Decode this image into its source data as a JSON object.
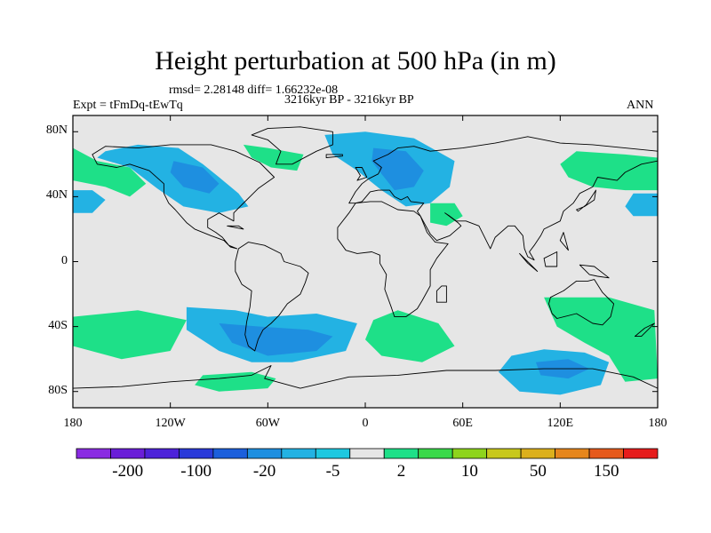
{
  "title": "Height perturbation at 500 hPa (in m)",
  "stats": "rmsd= 2.28148 diff= 1.66232e-08",
  "experiment": "Expt = tFmDq-tEwTq",
  "period": "3216kyr BP - 3216kyr BP",
  "season": "ANN",
  "map": {
    "lon_range": [
      -180,
      180
    ],
    "lat_range": [
      -90,
      90
    ],
    "lat_ticks": [
      {
        "value": 80,
        "label": "80N"
      },
      {
        "value": 40,
        "label": "40N"
      },
      {
        "value": 0,
        "label": "0"
      },
      {
        "value": -40,
        "label": "40S"
      },
      {
        "value": -80,
        "label": "80S"
      }
    ],
    "lon_ticks": [
      {
        "value": -180,
        "label": "180"
      },
      {
        "value": -120,
        "label": "120W"
      },
      {
        "value": -60,
        "label": "60W"
      },
      {
        "value": 0,
        "label": "0"
      },
      {
        "value": 60,
        "label": "60E"
      },
      {
        "value": 120,
        "label": "120E"
      },
      {
        "value": 180,
        "label": "180"
      }
    ]
  },
  "colorbar": {
    "colors": [
      "#8a2be2",
      "#6a1ed8",
      "#4d22d9",
      "#2a3ad9",
      "#1b5fdc",
      "#1e8fe0",
      "#23b2e3",
      "#1ec8e0",
      "#e6e6e6",
      "#1ee088",
      "#3ad94a",
      "#8ed41c",
      "#c8c81c",
      "#dcb01c",
      "#e6861c",
      "#e65a1c",
      "#e61c1c"
    ],
    "labels": [
      {
        "index": 1,
        "text": "-200"
      },
      {
        "index": 3,
        "text": "-100"
      },
      {
        "index": 5,
        "text": "-20"
      },
      {
        "index": 7,
        "text": "-5"
      },
      {
        "index": 9,
        "text": "2"
      },
      {
        "index": 11,
        "text": "10"
      },
      {
        "index": 13,
        "text": "50"
      },
      {
        "index": 15,
        "text": "150"
      }
    ]
  },
  "anomalies": [
    {
      "color": "#23b2e3",
      "points": [
        [
          -160,
          68
        ],
        [
          -140,
          72
        ],
        [
          -115,
          70
        ],
        [
          -100,
          60
        ],
        [
          -90,
          52
        ],
        [
          -78,
          42
        ],
        [
          -72,
          34
        ],
        [
          -90,
          30
        ],
        [
          -112,
          34
        ],
        [
          -128,
          45
        ],
        [
          -145,
          58
        ],
        [
          -165,
          64
        ]
      ]
    },
    {
      "color": "#1e8fe0",
      "points": [
        [
          -118,
          62
        ],
        [
          -100,
          58
        ],
        [
          -90,
          48
        ],
        [
          -96,
          42
        ],
        [
          -112,
          46
        ],
        [
          -120,
          55
        ]
      ]
    },
    {
      "color": "#23b2e3",
      "points": [
        [
          -25,
          78
        ],
        [
          0,
          80
        ],
        [
          30,
          76
        ],
        [
          55,
          62
        ],
        [
          52,
          46
        ],
        [
          40,
          36
        ],
        [
          25,
          34
        ],
        [
          10,
          44
        ],
        [
          -5,
          56
        ],
        [
          -20,
          66
        ]
      ]
    },
    {
      "color": "#1e8fe0",
      "points": [
        [
          5,
          70
        ],
        [
          25,
          68
        ],
        [
          36,
          56
        ],
        [
          30,
          46
        ],
        [
          18,
          44
        ],
        [
          10,
          54
        ],
        [
          4,
          62
        ]
      ]
    },
    {
      "color": "#23b2e3",
      "points": [
        [
          -180,
          44
        ],
        [
          -168,
          44
        ],
        [
          -160,
          38
        ],
        [
          -168,
          30
        ],
        [
          -180,
          30
        ]
      ]
    },
    {
      "color": "#23b2e3",
      "points": [
        [
          165,
          42
        ],
        [
          180,
          42
        ],
        [
          180,
          28
        ],
        [
          165,
          28
        ],
        [
          160,
          34
        ]
      ]
    },
    {
      "color": "#23b2e3",
      "points": [
        [
          -110,
          -28
        ],
        [
          -80,
          -30
        ],
        [
          -60,
          -34
        ],
        [
          -30,
          -32
        ],
        [
          -5,
          -38
        ],
        [
          -12,
          -55
        ],
        [
          -45,
          -62
        ],
        [
          -70,
          -62
        ],
        [
          -90,
          -55
        ],
        [
          -110,
          -42
        ]
      ]
    },
    {
      "color": "#1e8fe0",
      "points": [
        [
          -90,
          -38
        ],
        [
          -65,
          -40
        ],
        [
          -35,
          -42
        ],
        [
          -20,
          -46
        ],
        [
          -30,
          -55
        ],
        [
          -60,
          -58
        ],
        [
          -82,
          -50
        ]
      ]
    },
    {
      "color": "#23b2e3",
      "points": [
        [
          90,
          -58
        ],
        [
          110,
          -54
        ],
        [
          135,
          -56
        ],
        [
          150,
          -62
        ],
        [
          145,
          -76
        ],
        [
          120,
          -82
        ],
        [
          95,
          -80
        ],
        [
          82,
          -68
        ]
      ]
    },
    {
      "color": "#1e8fe0",
      "points": [
        [
          105,
          -62
        ],
        [
          125,
          -60
        ],
        [
          138,
          -66
        ],
        [
          125,
          -72
        ],
        [
          108,
          -70
        ]
      ]
    },
    {
      "color": "#1ee088",
      "points": [
        [
          -180,
          70
        ],
        [
          -165,
          62
        ],
        [
          -145,
          58
        ],
        [
          -135,
          48
        ],
        [
          -145,
          40
        ],
        [
          -160,
          46
        ],
        [
          -180,
          50
        ]
      ]
    },
    {
      "color": "#1ee088",
      "points": [
        [
          -75,
          72
        ],
        [
          -60,
          70
        ],
        [
          -38,
          66
        ],
        [
          -42,
          56
        ],
        [
          -58,
          58
        ],
        [
          -70,
          64
        ]
      ]
    },
    {
      "color": "#1ee088",
      "points": [
        [
          40,
          36
        ],
        [
          55,
          36
        ],
        [
          60,
          28
        ],
        [
          50,
          22
        ],
        [
          40,
          24
        ]
      ]
    },
    {
      "color": "#1ee088",
      "points": [
        [
          130,
          68
        ],
        [
          160,
          66
        ],
        [
          180,
          64
        ],
        [
          180,
          44
        ],
        [
          160,
          44
        ],
        [
          140,
          46
        ],
        [
          125,
          52
        ],
        [
          120,
          60
        ]
      ]
    },
    {
      "color": "#1ee088",
      "points": [
        [
          -180,
          -34
        ],
        [
          -140,
          -30
        ],
        [
          -110,
          -36
        ],
        [
          -120,
          -55
        ],
        [
          -150,
          -60
        ],
        [
          -180,
          -52
        ]
      ]
    },
    {
      "color": "#1ee088",
      "points": [
        [
          20,
          -30
        ],
        [
          45,
          -38
        ],
        [
          55,
          -52
        ],
        [
          35,
          -62
        ],
        [
          10,
          -58
        ],
        [
          0,
          -48
        ],
        [
          5,
          -36
        ]
      ]
    },
    {
      "color": "#1ee088",
      "points": [
        [
          110,
          -22
        ],
        [
          150,
          -22
        ],
        [
          178,
          -30
        ],
        [
          180,
          -72
        ],
        [
          160,
          -74
        ],
        [
          150,
          -58
        ],
        [
          135,
          -50
        ],
        [
          118,
          -40
        ]
      ]
    },
    {
      "color": "#1ee088",
      "points": [
        [
          -100,
          -70
        ],
        [
          -70,
          -68
        ],
        [
          -55,
          -72
        ],
        [
          -60,
          -78
        ],
        [
          -90,
          -80
        ],
        [
          -105,
          -76
        ]
      ]
    }
  ],
  "land": [
    [
      [
        -168,
        66
      ],
      [
        -160,
        71
      ],
      [
        -140,
        70
      ],
      [
        -120,
        72
      ],
      [
        -95,
        72
      ],
      [
        -80,
        68
      ],
      [
        -65,
        61
      ],
      [
        -56,
        52
      ],
      [
        -66,
        45
      ],
      [
        -70,
        41
      ],
      [
        -76,
        35
      ],
      [
        -81,
        30
      ],
      [
        -81,
        25
      ],
      [
        -90,
        30
      ],
      [
        -97,
        26
      ],
      [
        -97,
        21
      ],
      [
        -92,
        18
      ],
      [
        -88,
        15
      ],
      [
        -84,
        10
      ],
      [
        -79,
        8
      ],
      [
        -83,
        9
      ],
      [
        -87,
        13
      ],
      [
        -95,
        16
      ],
      [
        -105,
        20
      ],
      [
        -110,
        24
      ],
      [
        -117,
        32
      ],
      [
        -121,
        36
      ],
      [
        -124,
        42
      ],
      [
        -124,
        48
      ],
      [
        -133,
        56
      ],
      [
        -145,
        60
      ],
      [
        -153,
        58
      ],
      [
        -165,
        60
      ]
    ],
    [
      [
        -55,
        60
      ],
      [
        -45,
        60
      ],
      [
        -30,
        68
      ],
      [
        -20,
        72
      ],
      [
        -20,
        80
      ],
      [
        -40,
        83
      ],
      [
        -60,
        82
      ],
      [
        -70,
        78
      ],
      [
        -60,
        75
      ],
      [
        -52,
        68
      ]
    ],
    [
      [
        -78,
        8
      ],
      [
        -72,
        12
      ],
      [
        -62,
        10
      ],
      [
        -52,
        5
      ],
      [
        -50,
        0
      ],
      [
        -40,
        -3
      ],
      [
        -35,
        -7
      ],
      [
        -37,
        -13
      ],
      [
        -40,
        -20
      ],
      [
        -48,
        -26
      ],
      [
        -53,
        -33
      ],
      [
        -58,
        -38
      ],
      [
        -63,
        -42
      ],
      [
        -66,
        -48
      ],
      [
        -68,
        -55
      ],
      [
        -72,
        -52
      ],
      [
        -74,
        -45
      ],
      [
        -73,
        -37
      ],
      [
        -71,
        -28
      ],
      [
        -70,
        -18
      ],
      [
        -76,
        -14
      ],
      [
        -80,
        -6
      ],
      [
        -80,
        0
      ]
    ],
    [
      [
        -10,
        36
      ],
      [
        -6,
        43
      ],
      [
        -2,
        48
      ],
      [
        2,
        51
      ],
      [
        8,
        54
      ],
      [
        10,
        58
      ],
      [
        5,
        62
      ],
      [
        14,
        66
      ],
      [
        20,
        70
      ],
      [
        30,
        71
      ],
      [
        40,
        68
      ],
      [
        60,
        70
      ],
      [
        80,
        73
      ],
      [
        100,
        77
      ],
      [
        120,
        73
      ],
      [
        140,
        72
      ],
      [
        160,
        70
      ],
      [
        180,
        68
      ],
      [
        180,
        62
      ],
      [
        170,
        60
      ],
      [
        160,
        55
      ],
      [
        155,
        50
      ],
      [
        143,
        52
      ],
      [
        140,
        46
      ],
      [
        132,
        42
      ],
      [
        128,
        36
      ],
      [
        122,
        31
      ],
      [
        120,
        25
      ],
      [
        110,
        20
      ],
      [
        108,
        16
      ],
      [
        104,
        10
      ],
      [
        101,
        6
      ],
      [
        104,
        1
      ],
      [
        100,
        3
      ],
      [
        98,
        8
      ],
      [
        97,
        16
      ],
      [
        92,
        22
      ],
      [
        88,
        22
      ],
      [
        80,
        15
      ],
      [
        77,
        8
      ],
      [
        73,
        16
      ],
      [
        70,
        22
      ],
      [
        62,
        25
      ],
      [
        56,
        25
      ],
      [
        52,
        28
      ],
      [
        49,
        30
      ],
      [
        57,
        24
      ],
      [
        59,
        22
      ],
      [
        52,
        16
      ],
      [
        44,
        13
      ],
      [
        40,
        17
      ],
      [
        34,
        28
      ],
      [
        32,
        31
      ],
      [
        36,
        36
      ],
      [
        28,
        37
      ],
      [
        26,
        40
      ],
      [
        22,
        38
      ],
      [
        18,
        40
      ],
      [
        15,
        44
      ],
      [
        12,
        44
      ],
      [
        8,
        44
      ],
      [
        3,
        43
      ],
      [
        -2,
        37
      ],
      [
        -6,
        36
      ]
    ],
    [
      [
        -17,
        21
      ],
      [
        -10,
        30
      ],
      [
        -6,
        36
      ],
      [
        3,
        37
      ],
      [
        10,
        37
      ],
      [
        20,
        32
      ],
      [
        30,
        31
      ],
      [
        34,
        28
      ],
      [
        38,
        18
      ],
      [
        43,
        12
      ],
      [
        51,
        11
      ],
      [
        44,
        2
      ],
      [
        40,
        -5
      ],
      [
        40,
        -15
      ],
      [
        35,
        -24
      ],
      [
        32,
        -29
      ],
      [
        25,
        -34
      ],
      [
        18,
        -34
      ],
      [
        16,
        -28
      ],
      [
        12,
        -17
      ],
      [
        13,
        -8
      ],
      [
        9,
        -1
      ],
      [
        9,
        4
      ],
      [
        4,
        6
      ],
      [
        -5,
        5
      ],
      [
        -12,
        7
      ],
      [
        -17,
        14
      ]
    ],
    [
      [
        114,
        -22
      ],
      [
        122,
        -18
      ],
      [
        130,
        -12
      ],
      [
        137,
        -12
      ],
      [
        141,
        -11
      ],
      [
        146,
        -19
      ],
      [
        153,
        -26
      ],
      [
        151,
        -34
      ],
      [
        146,
        -39
      ],
      [
        140,
        -38
      ],
      [
        135,
        -35
      ],
      [
        130,
        -32
      ],
      [
        118,
        -35
      ],
      [
        115,
        -32
      ],
      [
        113,
        -26
      ]
    ],
    [
      [
        -180,
        -78
      ],
      [
        -150,
        -77
      ],
      [
        -120,
        -74
      ],
      [
        -90,
        -72
      ],
      [
        -70,
        -70
      ],
      [
        -58,
        -64
      ],
      [
        -62,
        -72
      ],
      [
        -40,
        -78
      ],
      [
        -10,
        -71
      ],
      [
        20,
        -70
      ],
      [
        50,
        -67
      ],
      [
        80,
        -67
      ],
      [
        110,
        -66
      ],
      [
        140,
        -66
      ],
      [
        165,
        -71
      ],
      [
        180,
        -78
      ],
      [
        180,
        -90
      ],
      [
        -180,
        -90
      ]
    ],
    [
      [
        47,
        -15
      ],
      [
        50,
        -15
      ],
      [
        50,
        -25
      ],
      [
        44,
        -25
      ],
      [
        44,
        -18
      ]
    ],
    [
      [
        -5,
        50
      ],
      [
        -3,
        53
      ],
      [
        -6,
        58
      ],
      [
        -2,
        58
      ],
      [
        1,
        52
      ]
    ],
    [
      [
        130,
        32
      ],
      [
        135,
        34
      ],
      [
        141,
        38
      ],
      [
        142,
        44
      ],
      [
        140,
        41
      ],
      [
        136,
        35
      ],
      [
        131,
        31
      ]
    ],
    [
      [
        95,
        5
      ],
      [
        105,
        -5
      ],
      [
        106,
        -6
      ],
      [
        100,
        -1
      ]
    ],
    [
      [
        110,
        2
      ],
      [
        118,
        6
      ],
      [
        118,
        -3
      ],
      [
        111,
        -3
      ]
    ],
    [
      [
        132,
        -2
      ],
      [
        141,
        -3
      ],
      [
        150,
        -10
      ],
      [
        143,
        -9
      ],
      [
        138,
        -8
      ]
    ],
    [
      [
        166,
        -46
      ],
      [
        172,
        -41
      ],
      [
        178,
        -38
      ],
      [
        175,
        -41
      ],
      [
        170,
        -46
      ]
    ],
    [
      [
        -24,
        64
      ],
      [
        -14,
        65
      ],
      [
        -14,
        66
      ],
      [
        -24,
        66
      ]
    ],
    [
      [
        120,
        13
      ],
      [
        125,
        7
      ],
      [
        122,
        18
      ]
    ],
    [
      [
        -85,
        22
      ],
      [
        -75,
        20
      ],
      [
        -78,
        22
      ]
    ]
  ]
}
